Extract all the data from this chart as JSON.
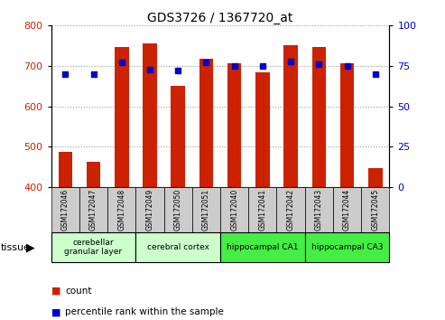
{
  "title": "GDS3726 / 1367720_at",
  "samples": [
    "GSM172046",
    "GSM172047",
    "GSM172048",
    "GSM172049",
    "GSM172050",
    "GSM172051",
    "GSM172040",
    "GSM172041",
    "GSM172042",
    "GSM172043",
    "GSM172044",
    "GSM172045"
  ],
  "counts": [
    487,
    462,
    748,
    755,
    651,
    718,
    706,
    685,
    752,
    748,
    706,
    447
  ],
  "percentiles": [
    70,
    70,
    77,
    73,
    72,
    77,
    75,
    75,
    78,
    76,
    75,
    70
  ],
  "count_base": 400,
  "ylim_left": [
    400,
    800
  ],
  "ylim_right": [
    0,
    100
  ],
  "yticks_left": [
    400,
    500,
    600,
    700,
    800
  ],
  "yticks_right": [
    0,
    25,
    50,
    75,
    100
  ],
  "bar_color": "#cc2200",
  "dot_color": "#0000cc",
  "tissue_groups": [
    {
      "label": "cerebellar\ngranular layer",
      "start": 0,
      "end": 3,
      "color": "#ccffcc"
    },
    {
      "label": "cerebral cortex",
      "start": 3,
      "end": 6,
      "color": "#ccffcc"
    },
    {
      "label": "hippocampal CA1",
      "start": 6,
      "end": 9,
      "color": "#44ee44"
    },
    {
      "label": "hippocampal CA3",
      "start": 9,
      "end": 12,
      "color": "#44ee44"
    }
  ],
  "legend_count_label": "count",
  "legend_pct_label": "percentile rank within the sample",
  "tissue_label": "tissue",
  "grid_color": "#999999",
  "tick_label_color_left": "#cc2200",
  "tick_label_color_right": "#0000cc",
  "sample_box_color": "#cccccc",
  "bar_width": 0.5
}
